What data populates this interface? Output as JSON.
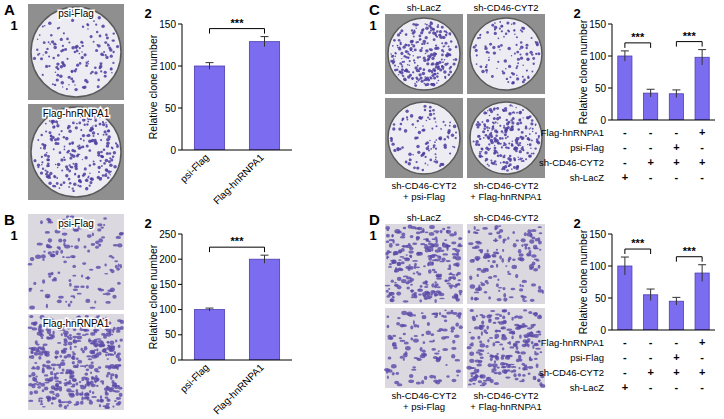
{
  "panels": [
    {
      "label": "A",
      "sub_labels": [
        "1",
        "2"
      ],
      "images": [
        [
          "psi-Flag"
        ],
        [
          "Flag-hnRNPA1"
        ]
      ]
    },
    {
      "label": "B",
      "sub_labels": [
        "1",
        "2"
      ],
      "images": [
        [
          "psi-Flag"
        ],
        [
          "Flag-hnRNPA1"
        ]
      ]
    },
    {
      "label": "C",
      "sub_labels": [
        "1",
        "2"
      ],
      "images": [
        [
          "sh-LacZ"
        ],
        [
          "sh-CD46-CYT2"
        ],
        [
          "sh-CD46-CYT2",
          "+ psi-Flag"
        ],
        [
          "sh-CD46-CYT2",
          "+ Flag-hnRNPA1"
        ]
      ]
    },
    {
      "label": "D",
      "sub_labels": [
        "1",
        "2"
      ],
      "images": [
        [
          "sh-LacZ"
        ],
        [
          "sh-CD46-CYT2"
        ],
        [
          "sh-CD46-CYT2",
          "+ psi-Flag"
        ],
        [
          "sh-CD46-CYT2",
          "+ Flag-hnRNPA1"
        ]
      ]
    }
  ],
  "chart_data": [
    {
      "type": "bar",
      "y_label": "Relative clone number",
      "categories": [
        "psi-Flag",
        "Flag-hnRNPA1"
      ],
      "values": [
        100,
        129
      ],
      "errors": [
        4,
        6
      ],
      "color": "#7b6cf0",
      "ylim": [
        0,
        150
      ],
      "yticks": [
        0,
        50,
        100,
        150
      ],
      "annotations": [
        {
          "text": "***",
          "from": 0,
          "to": 1
        }
      ]
    },
    {
      "type": "bar",
      "y_label": "Relative clone number",
      "categories": [
        "psi-Flag",
        "Flag-hnRNPA1"
      ],
      "values": [
        100,
        200
      ],
      "errors": [
        3,
        8
      ],
      "color": "#7b6cf0",
      "ylim": [
        0,
        250
      ],
      "yticks": [
        0,
        50,
        100,
        150,
        200,
        250
      ],
      "annotations": [
        {
          "text": "***",
          "from": 0,
          "to": 1
        }
      ]
    },
    {
      "type": "bar",
      "y_label": "Relative clone number",
      "categories": [
        null,
        null,
        null,
        null
      ],
      "values": [
        100,
        42,
        41,
        98
      ],
      "errors": [
        8,
        6,
        6,
        12
      ],
      "color": "#7b6cf0",
      "ylim": [
        0,
        150
      ],
      "yticks": [
        0,
        50,
        100,
        150
      ],
      "conditions": [
        {
          "name": "Flag-hnRNPA1",
          "signs": [
            "-",
            "-",
            "-",
            "+"
          ]
        },
        {
          "name": "psi-Flag",
          "signs": [
            "-",
            "-",
            "+",
            "-"
          ]
        },
        {
          "name": "sh-CD46-CYT2",
          "signs": [
            "-",
            "+",
            "+",
            "+"
          ]
        },
        {
          "name": "sh-LacZ",
          "signs": [
            "+",
            "-",
            "-",
            "-"
          ]
        }
      ],
      "annotations": [
        {
          "text": "***",
          "from": 0,
          "to": 1
        },
        {
          "text": "***",
          "from": 2,
          "to": 3
        }
      ]
    },
    {
      "type": "bar",
      "y_label": "Relative clone number",
      "categories": [
        null,
        null,
        null,
        null
      ],
      "values": [
        100,
        55,
        45,
        89
      ],
      "errors": [
        14,
        9,
        6,
        13
      ],
      "color": "#7b6cf0",
      "ylim": [
        0,
        150
      ],
      "yticks": [
        0,
        50,
        100,
        150
      ],
      "conditions": [
        {
          "name": "Flag-hnRNPA1",
          "signs": [
            "-",
            "-",
            "-",
            "+"
          ]
        },
        {
          "name": "psi-Flag",
          "signs": [
            "-",
            "-",
            "+",
            "-"
          ]
        },
        {
          "name": "sh-CD46-CYT2",
          "signs": [
            "-",
            "+",
            "+",
            "+"
          ]
        },
        {
          "name": "sh-LacZ",
          "signs": [
            "+",
            "-",
            "-",
            "-"
          ]
        }
      ],
      "annotations": [
        {
          "text": "***",
          "from": 0,
          "to": 1
        },
        {
          "text": "***",
          "from": 2,
          "to": 3
        }
      ]
    }
  ]
}
